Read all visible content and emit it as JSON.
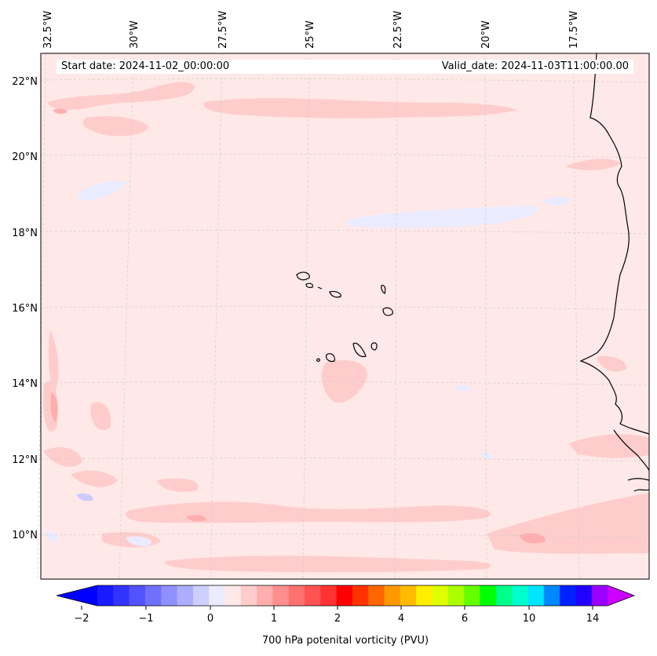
{
  "map": {
    "start_date_label": "Start date: 2024-11-02_00:00:00",
    "valid_date_label": "Valid_date: 2024-11-03T11:00:00.00",
    "lon_labels": [
      "32.5°W",
      "30°W",
      "27.5°W",
      "25°W",
      "22.5°W",
      "20°W",
      "17.5°W"
    ],
    "lat_labels": [
      "22°N",
      "20°N",
      "18°N",
      "16°N",
      "14°N",
      "12°N",
      "10°N"
    ],
    "background_color": "#ffe8e8",
    "colorbar": {
      "label": "700 hPa potenital vorticity (PVU)",
      "ticks": [
        "−2",
        "−1",
        "0",
        "1",
        "2",
        "4",
        "6",
        "10",
        "14"
      ],
      "under_color": "#0000ff",
      "over_color": "#cc00ff",
      "colors": [
        "#1a1aff",
        "#3333ff",
        "#5252ff",
        "#7070ff",
        "#8f8fff",
        "#adadff",
        "#cccfff",
        "#ebebff",
        "#ffe8e8",
        "#ffcccc",
        "#ffadad",
        "#ff8f8f",
        "#ff7070",
        "#ff5252",
        "#ff3333",
        "#ff0000",
        "#ff3300",
        "#ff6600",
        "#ff9900",
        "#ffbb00",
        "#ffee00",
        "#ddff00",
        "#aaff00",
        "#66ff00",
        "#00ff00",
        "#00ff88",
        "#00ffcc",
        "#00e5ff",
        "#0088ff",
        "#0022ff",
        "#2200ff",
        "#9900ff"
      ]
    }
  }
}
